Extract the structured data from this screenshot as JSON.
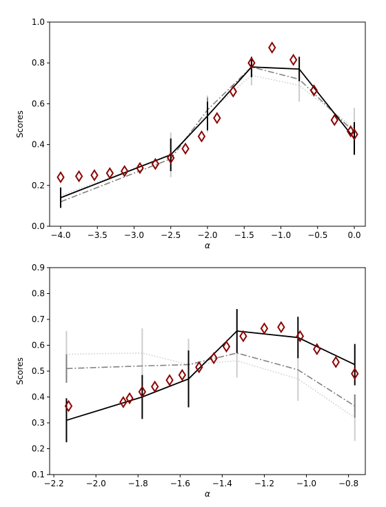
{
  "chart_data": [
    {
      "type": "line",
      "xlabel": "α",
      "ylabel": "Scores",
      "xlim": [
        -4.15,
        0.15
      ],
      "ylim": [
        0.0,
        1.0
      ],
      "xticks": [
        -4.0,
        -3.5,
        -3.0,
        -2.5,
        -2.0,
        -1.5,
        -1.0,
        -0.5,
        0.0
      ],
      "xtick_labels": [
        "−4.0",
        "−3.5",
        "−3.0",
        "−2.5",
        "−2.0",
        "−1.5",
        "−1.0",
        "−0.5",
        "0.0"
      ],
      "yticks": [
        0.0,
        0.2,
        0.4,
        0.6,
        0.8,
        1.0
      ],
      "ytick_labels": [
        "0.0",
        "0.2",
        "0.4",
        "0.6",
        "0.8",
        "1.0"
      ],
      "grid": false,
      "series": [
        {
          "style": "dotted",
          "color": "#cccccc",
          "x": [
            -4.0,
            -2.5,
            -2.0,
            -1.4,
            -0.75,
            0.0
          ],
          "y": [
            0.15,
            0.35,
            0.55,
            0.74,
            0.69,
            0.48
          ],
          "err": [
            0.0,
            0.11,
            0.09,
            0.05,
            0.08,
            0.1
          ]
        },
        {
          "style": "dashdot",
          "color": "#808080",
          "x": [
            -4.0,
            -2.5,
            -2.0,
            -1.4,
            -0.75,
            0.0
          ],
          "y": [
            0.12,
            0.33,
            0.57,
            0.78,
            0.72,
            0.46
          ],
          "err": [
            0.0,
            0.0,
            0.06,
            0.04,
            0.0,
            0.0
          ]
        },
        {
          "style": "solid",
          "color": "#000000",
          "x": [
            -4.0,
            -2.5,
            -2.0,
            -1.4,
            -0.75,
            0.0
          ],
          "y": [
            0.14,
            0.35,
            0.54,
            0.78,
            0.77,
            0.43
          ],
          "err": [
            0.05,
            0.08,
            0.07,
            0.05,
            0.06,
            0.08
          ]
        },
        {
          "style": "markers",
          "marker": "diamond",
          "color": "#8b0000",
          "x": [
            -4.0,
            -3.75,
            -3.54,
            -3.33,
            -3.13,
            -2.92,
            -2.71,
            -2.5,
            -2.3,
            -2.08,
            -1.87,
            -1.65,
            -1.4,
            -1.12,
            -0.83,
            -0.55,
            -0.27,
            -0.05,
            0.0
          ],
          "y": [
            0.24,
            0.245,
            0.25,
            0.26,
            0.27,
            0.285,
            0.305,
            0.335,
            0.38,
            0.44,
            0.53,
            0.66,
            0.8,
            0.875,
            0.815,
            0.665,
            0.52,
            0.465,
            0.45
          ]
        }
      ]
    },
    {
      "type": "line",
      "xlabel": "α",
      "ylabel": "Scores",
      "xlim": [
        -2.22,
        -0.72
      ],
      "ylim": [
        0.1,
        0.9
      ],
      "xticks": [
        -2.2,
        -2.0,
        -1.8,
        -1.6,
        -1.4,
        -1.2,
        -1.0,
        -0.8
      ],
      "xtick_labels": [
        "−2.2",
        "−2.0",
        "−1.8",
        "−1.6",
        "−1.4",
        "−1.2",
        "−1.0",
        "−0.8"
      ],
      "yticks": [
        0.1,
        0.2,
        0.3,
        0.4,
        0.5,
        0.6,
        0.7,
        0.8,
        0.9
      ],
      "ytick_labels": [
        "0.1",
        "0.2",
        "0.3",
        "0.4",
        "0.5",
        "0.6",
        "0.7",
        "0.8",
        "0.9"
      ],
      "grid": false,
      "series": [
        {
          "style": "dotted",
          "color": "#cccccc",
          "x": [
            -2.14,
            -1.78,
            -1.56,
            -1.33,
            -1.04,
            -0.77
          ],
          "y": [
            0.565,
            0.57,
            0.525,
            0.54,
            0.47,
            0.32
          ],
          "err": [
            0.09,
            0.095,
            0.1,
            0.065,
            0.085,
            0.09
          ]
        },
        {
          "style": "dashdot",
          "color": "#808080",
          "x": [
            -2.14,
            -1.78,
            -1.56,
            -1.33,
            -1.04,
            -0.77
          ],
          "y": [
            0.51,
            0.52,
            0.525,
            0.57,
            0.505,
            0.365
          ],
          "err": [
            0.055,
            0.0,
            0.0,
            0.0,
            0.0,
            0.045
          ]
        },
        {
          "style": "solid",
          "color": "#000000",
          "x": [
            -2.14,
            -1.78,
            -1.56,
            -1.33,
            -1.04,
            -0.77
          ],
          "y": [
            0.31,
            0.4,
            0.47,
            0.655,
            0.63,
            0.525
          ],
          "err": [
            0.085,
            0.085,
            0.11,
            0.085,
            0.08,
            0.08
          ]
        },
        {
          "style": "markers",
          "marker": "diamond",
          "color": "#8b0000",
          "x": [
            -2.13,
            -1.87,
            -1.84,
            -1.78,
            -1.72,
            -1.65,
            -1.59,
            -1.51,
            -1.44,
            -1.38,
            -1.3,
            -1.2,
            -1.12,
            -1.03,
            -0.95,
            -0.86,
            -0.77
          ],
          "y": [
            0.365,
            0.38,
            0.395,
            0.42,
            0.44,
            0.465,
            0.485,
            0.515,
            0.55,
            0.595,
            0.635,
            0.665,
            0.67,
            0.635,
            0.585,
            0.535,
            0.49
          ]
        }
      ]
    }
  ]
}
